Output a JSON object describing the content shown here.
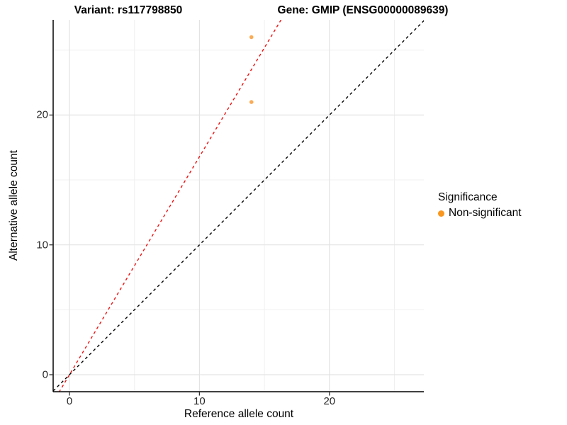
{
  "chart_data": {
    "type": "scatter",
    "title_left": "Variant: rs117798850",
    "title_right": "Gene: GMIP (ENSG00000089639)",
    "xlabel": "Reference allele count",
    "ylabel": "Alternative allele count",
    "xlim": [
      -1.25,
      27.3
    ],
    "ylim": [
      -1.31,
      27.3
    ],
    "x_ticks": [
      0,
      10,
      20
    ],
    "y_ticks": [
      0,
      10,
      20
    ],
    "x_minor_ticks": [
      5,
      15,
      25
    ],
    "y_minor_ticks": [
      5,
      15,
      25
    ],
    "grid": true,
    "legend_position": "right",
    "points": [
      {
        "x": 14,
        "y": 26,
        "series": "Non-significant"
      },
      {
        "x": 14,
        "y": 21,
        "series": "Non-significant"
      }
    ],
    "lines": [
      {
        "name": "identity-line",
        "slope": 1.0,
        "intercept": 0,
        "color": "#000000",
        "style": "dashed"
      },
      {
        "name": "fit-line",
        "slope": 1.679,
        "intercept": 0,
        "color": "#EE1111",
        "style": "dashed"
      }
    ],
    "colors": {
      "point_fill": "#F9A242",
      "legend_dot": "#F9971E",
      "grid_major": "#E3E3E3",
      "grid_minor": "#F0F0F0",
      "axis_line": "#000000"
    },
    "legend": {
      "title": "Significance",
      "items": [
        {
          "label": "Non-significant",
          "color": "#F9971E"
        }
      ]
    }
  }
}
